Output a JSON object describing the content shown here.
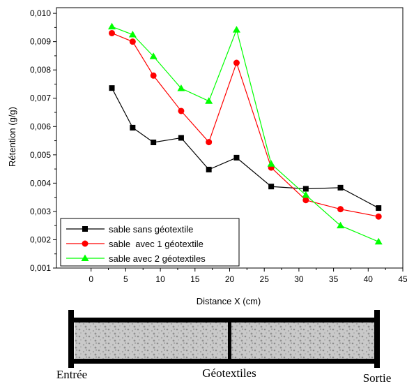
{
  "chart_data": {
    "type": "line",
    "xlabel": "Distance X (cm)",
    "ylabel": "Rétention (g/g)",
    "xlim": [
      -5,
      45
    ],
    "ylim": [
      0.001,
      0.0102
    ],
    "x_ticks": [
      0,
      5,
      10,
      15,
      20,
      25,
      30,
      35,
      40,
      45
    ],
    "x_tick_labels": [
      "0",
      "5",
      "10",
      "15",
      "20",
      "25",
      "30",
      "35",
      "40",
      "45"
    ],
    "y_ticks": [
      0.001,
      0.002,
      0.003,
      0.004,
      0.005,
      0.006,
      0.007,
      0.008,
      0.009,
      0.01
    ],
    "y_tick_labels": [
      "0,001",
      "0,002",
      "0,003",
      "0,004",
      "0,005",
      "0,006",
      "0,007",
      "0,008",
      "0,009",
      "0,010"
    ],
    "grid": false,
    "legend_position": "bottom-left",
    "series": [
      {
        "name": "sable sans géotextile",
        "color": "#000000",
        "marker": "square",
        "x": [
          3,
          6,
          9,
          13,
          17,
          21,
          26,
          31,
          36,
          41.5
        ],
        "values": [
          0.00736,
          0.00596,
          0.00544,
          0.0056,
          0.00448,
          0.0049,
          0.00388,
          0.0038,
          0.00384,
          0.00312
        ]
      },
      {
        "name": "sable  avec 1 géotextile",
        "color": "#ff0000",
        "marker": "circle",
        "x": [
          3,
          6,
          9,
          13,
          17,
          21,
          26,
          31,
          36,
          41.5
        ],
        "values": [
          0.0093,
          0.009,
          0.0078,
          0.00655,
          0.00545,
          0.00825,
          0.00455,
          0.0034,
          0.00308,
          0.00282
        ]
      },
      {
        "name": "sable avec 2 géotextiles",
        "color": "#00ff00",
        "marker": "triangle",
        "x": [
          3,
          6,
          9,
          13,
          17,
          21,
          26,
          31,
          36,
          41.5
        ],
        "values": [
          0.00953,
          0.00925,
          0.00848,
          0.00735,
          0.0069,
          0.00942,
          0.00468,
          0.00358,
          0.0025,
          0.00193
        ]
      }
    ]
  },
  "diagram": {
    "labels": {
      "inlet": "Entrée",
      "geotextiles": "Géotextiles",
      "outlet": "Sortie"
    }
  }
}
